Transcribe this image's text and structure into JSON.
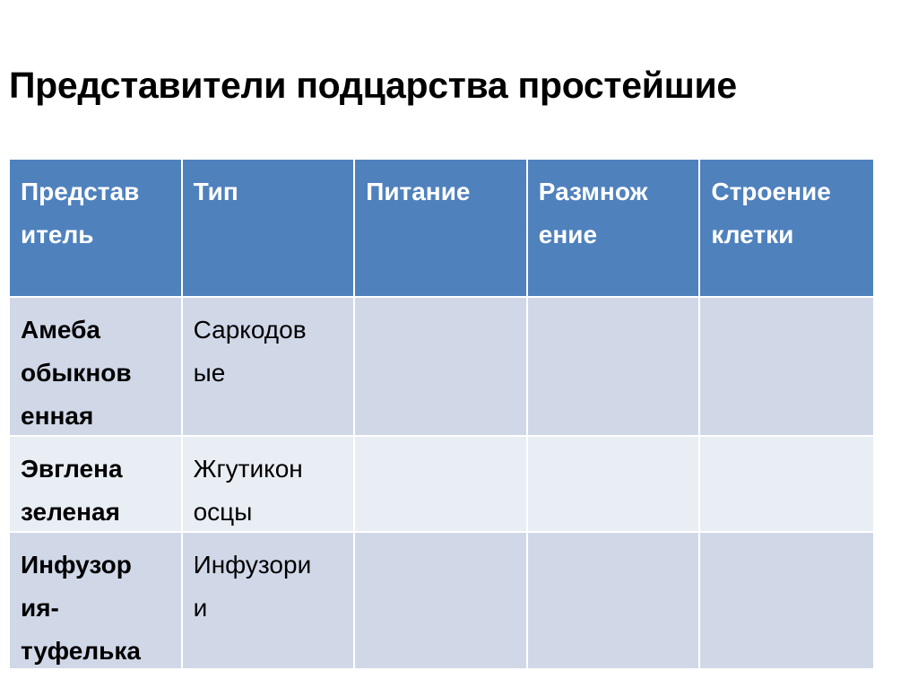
{
  "title": "Представители подцарства простейшие",
  "colors": {
    "header": "#4f81bd",
    "row_odd": "#d0d8e8",
    "row_even": "#e9edf4"
  },
  "table": {
    "headers": [
      [
        "Представ",
        "итель"
      ],
      [
        "Тип"
      ],
      [
        "Питание"
      ],
      [
        "Размнож",
        "ение"
      ],
      [
        "Строение",
        "клетки"
      ]
    ],
    "rows": [
      {
        "representative": [
          "Амеба",
          "обыкнов",
          "енная"
        ],
        "type": [
          "Саркодов",
          "ые"
        ],
        "nutrition": "",
        "reproduction": "",
        "cell_structure": ""
      },
      {
        "representative": [
          "Эвглена",
          "зеленая"
        ],
        "type": [
          "Жгутикон",
          "осцы"
        ],
        "nutrition": "",
        "reproduction": "",
        "cell_structure": ""
      },
      {
        "representative": [
          "Инфузор",
          "ия-",
          "туфелька"
        ],
        "type": [
          "Инфузори",
          "и"
        ],
        "nutrition": "",
        "reproduction": "",
        "cell_structure": ""
      }
    ]
  }
}
